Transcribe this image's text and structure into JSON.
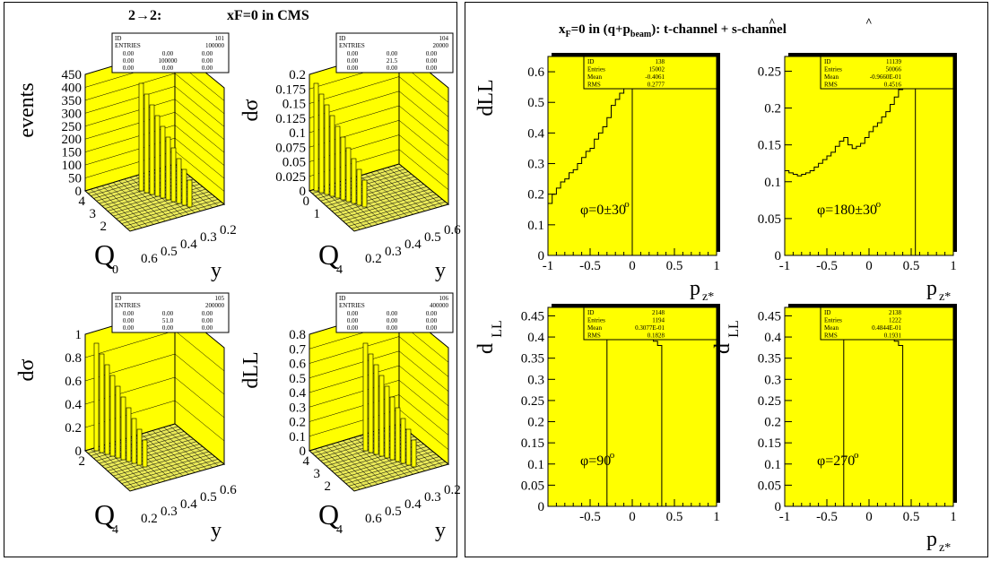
{
  "left_figure": {
    "title_prefix": "2→2:",
    "title_main": "xF=0  in CMS",
    "stat_row_labels": [
      "ID",
      "ENTRIES"
    ],
    "panels": [
      {
        "id": "101",
        "entries": "100000",
        "zlabel": "events",
        "zticks": [
          "0",
          "50",
          "100",
          "150",
          "200",
          "250",
          "300",
          "350",
          "400",
          "450"
        ],
        "rows": [
          [
            "0.00",
            "0.00",
            "0.00"
          ],
          [
            "0.00",
            "100000",
            "0.00"
          ],
          [
            "0.00",
            "0.00",
            "0.00"
          ]
        ],
        "ylabel": "y",
        "qlabel": "Q",
        "qsub": "0",
        "xticks": [
          "0.6",
          "0.5",
          "0.4",
          "0.3",
          "0.2"
        ],
        "depth_ticks": [
          "4",
          "3",
          "2"
        ]
      },
      {
        "id": "104",
        "entries": "20000",
        "zlabel": "dσ",
        "zticks": [
          "0",
          "0.025",
          "0.05",
          "0.075",
          "0.1",
          "0.125",
          "0.15",
          "0.175",
          "0.2"
        ],
        "rows": [
          [
            "0.00",
            "0.00",
            "0.00"
          ],
          [
            "0.00",
            "21.5",
            "0.00"
          ],
          [
            "0.00",
            "0.00",
            "0.00"
          ]
        ],
        "ylabel": "y",
        "qlabel": "Q",
        "qsub": "4",
        "xticks": [
          "0.2",
          "0.3",
          "0.4",
          "0.5",
          "0.6"
        ],
        "depth_ticks": [
          "0",
          "1"
        ]
      },
      {
        "id": "105",
        "entries": "200000",
        "zlabel": "dσ",
        "zticks": [
          "0",
          "0.2",
          "0.4",
          "0.6",
          "0.8",
          "1"
        ],
        "rows": [
          [
            "0.00",
            "0.00",
            "0.00"
          ],
          [
            "0.00",
            "51.0",
            "0.00"
          ],
          [
            "0.00",
            "0.00",
            "0.00"
          ]
        ],
        "ylabel": "y",
        "qlabel": "Q",
        "qsub": "4",
        "xticks": [
          "0.2",
          "0.3",
          "0.4",
          "0.5",
          "0.6"
        ],
        "depth_ticks": [
          "2"
        ]
      },
      {
        "id": "106",
        "entries": "400000",
        "zlabel": "dLL",
        "zticks": [
          "0",
          "0.1",
          "0.2",
          "0.3",
          "0.4",
          "0.5",
          "0.6",
          "0.7",
          "0.8"
        ],
        "rows": [
          [
            "0.00",
            "0.00",
            "0.00"
          ],
          [
            "0.00",
            "0.00",
            "0.00"
          ],
          [
            "0.00",
            "0.00",
            "0.00"
          ]
        ],
        "ylabel": "y",
        "qlabel": "Q",
        "qsub": "4",
        "xticks": [
          "0.6",
          "0.5",
          "0.4",
          "0.3",
          "0.2"
        ],
        "depth_ticks": [
          "4",
          "3",
          "2"
        ]
      }
    ]
  },
  "right_figure": {
    "title_pre": "x",
    "title_sub_F": "F",
    "title_mid": "=0 in (q+p",
    "title_sub_beam": "beam",
    "title_post": "):  t-channel + s-channel",
    "hat_t": "^",
    "hat_s": "^",
    "stat_labels": [
      "ID",
      "Entries",
      "Mean",
      "RMS"
    ]
  },
  "chart_data": [
    {
      "type": "line",
      "step": true,
      "id": "138",
      "entries": "15002",
      "mean": "-0.4061",
      "rms": "0.2777",
      "ylabel": "dLL",
      "xlabel": "p",
      "xlabel_sub": "z*",
      "annotation": "φ=0±30",
      "annotation_sup": "o",
      "xlim": [
        -1,
        1
      ],
      "ylim": [
        0,
        0.65
      ],
      "xticks": [
        "-1",
        "-0.5",
        "0",
        "0.5",
        "1"
      ],
      "xtick_vals": [
        -1,
        -0.5,
        0,
        0.5,
        1
      ],
      "yticks": [
        "0",
        "0.1",
        "0.2",
        "0.3",
        "0.4",
        "0.5",
        "0.6"
      ],
      "ytick_vals": [
        0,
        0.1,
        0.2,
        0.3,
        0.4,
        0.5,
        0.6
      ],
      "x": [
        -1.0,
        -0.95,
        -0.9,
        -0.85,
        -0.8,
        -0.75,
        -0.7,
        -0.65,
        -0.6,
        -0.55,
        -0.5,
        -0.45,
        -0.4,
        -0.35,
        -0.3,
        -0.25,
        -0.2,
        -0.15,
        -0.1,
        -0.05,
        0.0
      ],
      "y": [
        0.17,
        0.2,
        0.22,
        0.24,
        0.25,
        0.27,
        0.28,
        0.3,
        0.32,
        0.34,
        0.35,
        0.38,
        0.4,
        0.42,
        0.45,
        0.49,
        0.51,
        0.53,
        0.55,
        0.58,
        0.6
      ],
      "end_x": 0.0
    },
    {
      "type": "line",
      "step": true,
      "id": "11139",
      "entries": "50066",
      "mean": "-0.9660E-01",
      "rms": "0.4516",
      "ylabel": "",
      "xlabel": "p",
      "xlabel_sub": "z*",
      "annotation": "φ=180±30",
      "annotation_sup": "o",
      "xlim": [
        -1,
        1
      ],
      "ylim": [
        0,
        0.27
      ],
      "xticks": [
        "-1",
        "-0.5",
        "0",
        "0.5",
        "1"
      ],
      "xtick_vals": [
        -1,
        -0.5,
        0,
        0.5,
        1
      ],
      "yticks": [
        "0",
        "0.05",
        "0.1",
        "0.15",
        "0.2",
        "0.25"
      ],
      "ytick_vals": [
        0,
        0.05,
        0.1,
        0.15,
        0.2,
        0.25
      ],
      "x": [
        -1.0,
        -0.95,
        -0.9,
        -0.85,
        -0.8,
        -0.75,
        -0.7,
        -0.65,
        -0.6,
        -0.55,
        -0.5,
        -0.45,
        -0.4,
        -0.35,
        -0.3,
        -0.25,
        -0.2,
        -0.15,
        -0.1,
        -0.05,
        0.0,
        0.05,
        0.1,
        0.15,
        0.2,
        0.25,
        0.3,
        0.35,
        0.4,
        0.45,
        0.5
      ],
      "y": [
        0.115,
        0.112,
        0.11,
        0.108,
        0.11,
        0.112,
        0.115,
        0.12,
        0.125,
        0.13,
        0.135,
        0.14,
        0.148,
        0.155,
        0.16,
        0.15,
        0.145,
        0.148,
        0.152,
        0.16,
        0.168,
        0.175,
        0.18,
        0.188,
        0.195,
        0.205,
        0.215,
        0.225,
        0.235,
        0.248,
        0.26
      ],
      "end_x": 0.55
    },
    {
      "type": "line",
      "step": true,
      "id": "2148",
      "entries": "1194",
      "mean": "0.3077E-01",
      "rms": "0.1828",
      "ylabel": "d",
      "ylabel_sub": "LL",
      "xlabel": "",
      "xlabel_sub": "",
      "annotation": "φ=90",
      "annotation_sup": "o",
      "xlim": [
        -1,
        1
      ],
      "ylim": [
        0,
        0.47
      ],
      "xticks": [
        "-0.5",
        "0",
        "0.5",
        "1"
      ],
      "xtick_vals": [
        -0.5,
        0,
        0.5,
        1
      ],
      "yticks": [
        "0",
        "0.05",
        "0.1",
        "0.15",
        "0.2",
        "0.25",
        "0.3",
        "0.35",
        "0.4",
        "0.45"
      ],
      "ytick_vals": [
        0,
        0.05,
        0.1,
        0.15,
        0.2,
        0.25,
        0.3,
        0.35,
        0.4,
        0.45
      ],
      "x": [
        -0.3,
        -0.25,
        -0.2,
        -0.15,
        -0.1,
        -0.05,
        0.0,
        0.05,
        0.1,
        0.15,
        0.2,
        0.25,
        0.3,
        0.35
      ],
      "y": [
        0.43,
        0.44,
        0.435,
        0.44,
        0.445,
        0.44,
        0.44,
        0.43,
        0.42,
        0.41,
        0.4,
        0.39,
        0.38,
        0.38
      ],
      "end_x": 0.35
    },
    {
      "type": "line",
      "step": true,
      "id": "2138",
      "entries": "1222",
      "mean": "0.4844E-01",
      "rms": "0.1931",
      "ylabel": "d",
      "ylabel_sub": "LL",
      "xlabel": "p",
      "xlabel_sub": "z*",
      "annotation": "φ=270",
      "annotation_sup": "o",
      "xlim": [
        -1,
        1
      ],
      "ylim": [
        0,
        0.47
      ],
      "xticks": [
        "-1",
        "-0.5",
        "0",
        "0.5",
        "1"
      ],
      "xtick_vals": [
        -1,
        -0.5,
        0,
        0.5,
        1
      ],
      "yticks": [
        "0",
        "0.05",
        "0.1",
        "0.15",
        "0.2",
        "0.25",
        "0.3",
        "0.35",
        "0.4",
        "0.45"
      ],
      "ytick_vals": [
        0,
        0.05,
        0.1,
        0.15,
        0.2,
        0.25,
        0.3,
        0.35,
        0.4,
        0.45
      ],
      "x": [
        -0.3,
        -0.25,
        -0.2,
        -0.15,
        -0.1,
        -0.05,
        0.0,
        0.05,
        0.1,
        0.15,
        0.2,
        0.25,
        0.3,
        0.35,
        0.4
      ],
      "y": [
        0.43,
        0.435,
        0.44,
        0.44,
        0.445,
        0.45,
        0.445,
        0.44,
        0.43,
        0.42,
        0.41,
        0.4,
        0.39,
        0.38,
        0.38
      ],
      "end_x": 0.4
    }
  ],
  "colors": {
    "fill": "#ffff00",
    "frame": "#000000",
    "surface": "#e8e858",
    "shadow": "#000000"
  }
}
